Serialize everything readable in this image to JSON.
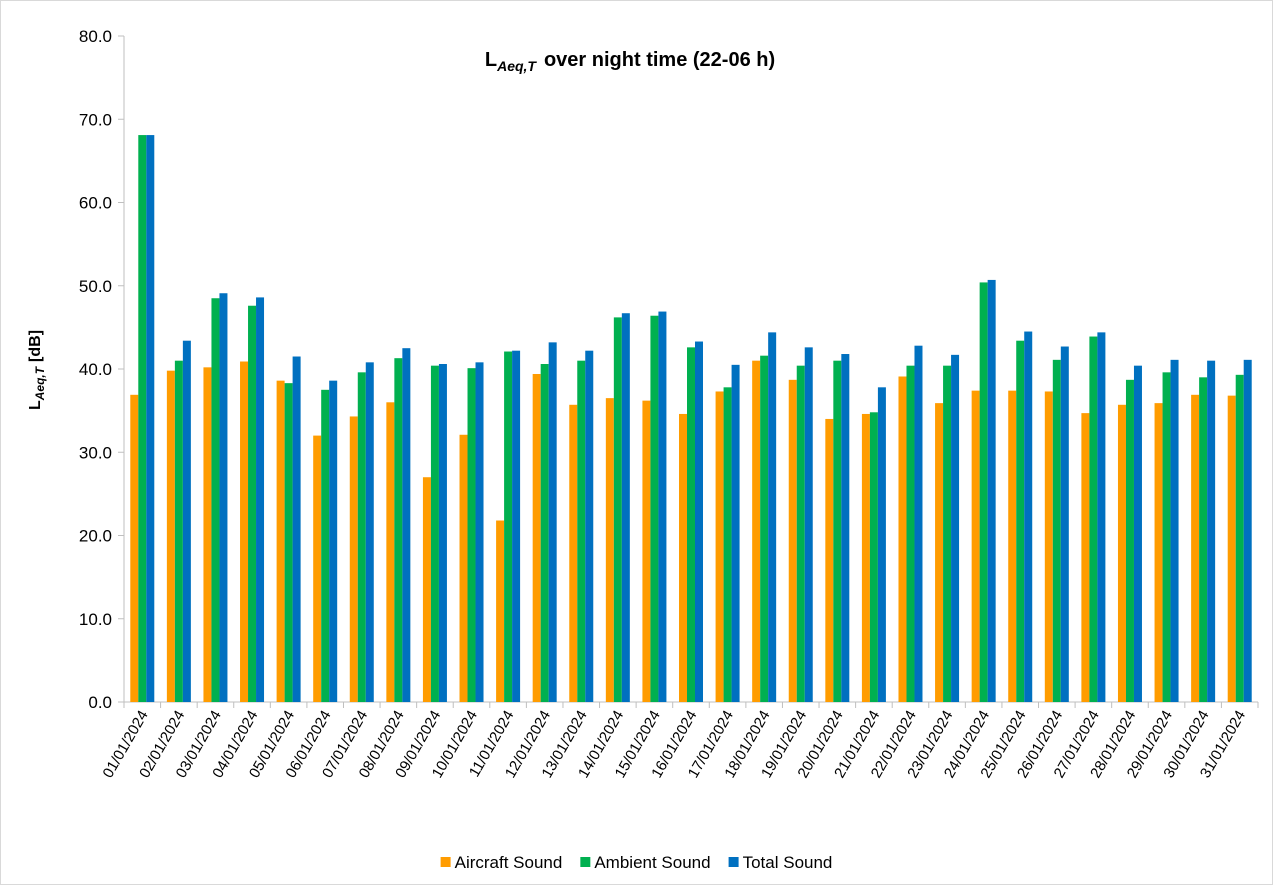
{
  "chart_data": {
    "type": "bar",
    "title": {
      "base": "L",
      "subscript": "Aeq,T",
      "text": "over night time (22-06 h)"
    },
    "y_label": {
      "base": "L",
      "subscript": "Aeq,T",
      "text": "[dB]"
    },
    "categories": [
      "01/01/2024",
      "02/01/2024",
      "03/01/2024",
      "04/01/2024",
      "05/01/2024",
      "06/01/2024",
      "07/01/2024",
      "08/01/2024",
      "09/01/2024",
      "10/01/2024",
      "11/01/2024",
      "12/01/2024",
      "13/01/2024",
      "14/01/2024",
      "15/01/2024",
      "16/01/2024",
      "17/01/2024",
      "18/01/2024",
      "19/01/2024",
      "20/01/2024",
      "21/01/2024",
      "22/01/2024",
      "23/01/2024",
      "24/01/2024",
      "25/01/2024",
      "26/01/2024",
      "27/01/2024",
      "28/01/2024",
      "29/01/2024",
      "30/01/2024",
      "31/01/2024"
    ],
    "series": [
      {
        "name": "Aircraft Sound",
        "color": "#ff9c00",
        "values": [
          36.9,
          39.8,
          40.2,
          40.9,
          38.6,
          32.0,
          34.3,
          36.0,
          27.0,
          32.1,
          21.8,
          39.4,
          35.7,
          36.5,
          36.2,
          34.6,
          37.3,
          41.0,
          38.7,
          34.0,
          34.6,
          39.1,
          35.9,
          37.4,
          37.4,
          37.3,
          34.7,
          35.7,
          35.9,
          36.9,
          36.8
        ]
      },
      {
        "name": "Ambient Sound",
        "color": "#00b050",
        "values": [
          68.1,
          41.0,
          48.5,
          47.6,
          38.3,
          37.5,
          39.6,
          41.3,
          40.4,
          40.1,
          42.1,
          40.6,
          41.0,
          46.2,
          46.4,
          42.6,
          37.8,
          41.6,
          40.4,
          41.0,
          34.8,
          40.4,
          40.4,
          50.4,
          43.4,
          41.1,
          43.9,
          38.7,
          39.6,
          39.0,
          39.3
        ]
      },
      {
        "name": "Total Sound",
        "color": "#0070c0",
        "values": [
          68.1,
          43.4,
          49.1,
          48.6,
          41.5,
          38.6,
          40.8,
          42.5,
          40.6,
          40.8,
          42.2,
          43.2,
          42.2,
          46.7,
          46.9,
          43.3,
          40.5,
          44.4,
          42.6,
          41.8,
          37.8,
          42.8,
          41.7,
          50.7,
          44.5,
          42.7,
          44.4,
          40.4,
          41.1,
          41.0,
          41.1
        ]
      }
    ],
    "ylim": [
      0,
      80
    ],
    "yticks": [
      {
        "value": 0,
        "label": "0.0"
      },
      {
        "value": 10,
        "label": "10.0"
      },
      {
        "value": 20,
        "label": "20.0"
      },
      {
        "value": 30,
        "label": "30.0"
      },
      {
        "value": 40,
        "label": "40.0"
      },
      {
        "value": 50,
        "label": "50.0"
      },
      {
        "value": 60,
        "label": "60.0"
      },
      {
        "value": 70,
        "label": "70.0"
      },
      {
        "value": 80,
        "label": "80.0"
      }
    ],
    "grid": false,
    "legend": "bottom"
  }
}
